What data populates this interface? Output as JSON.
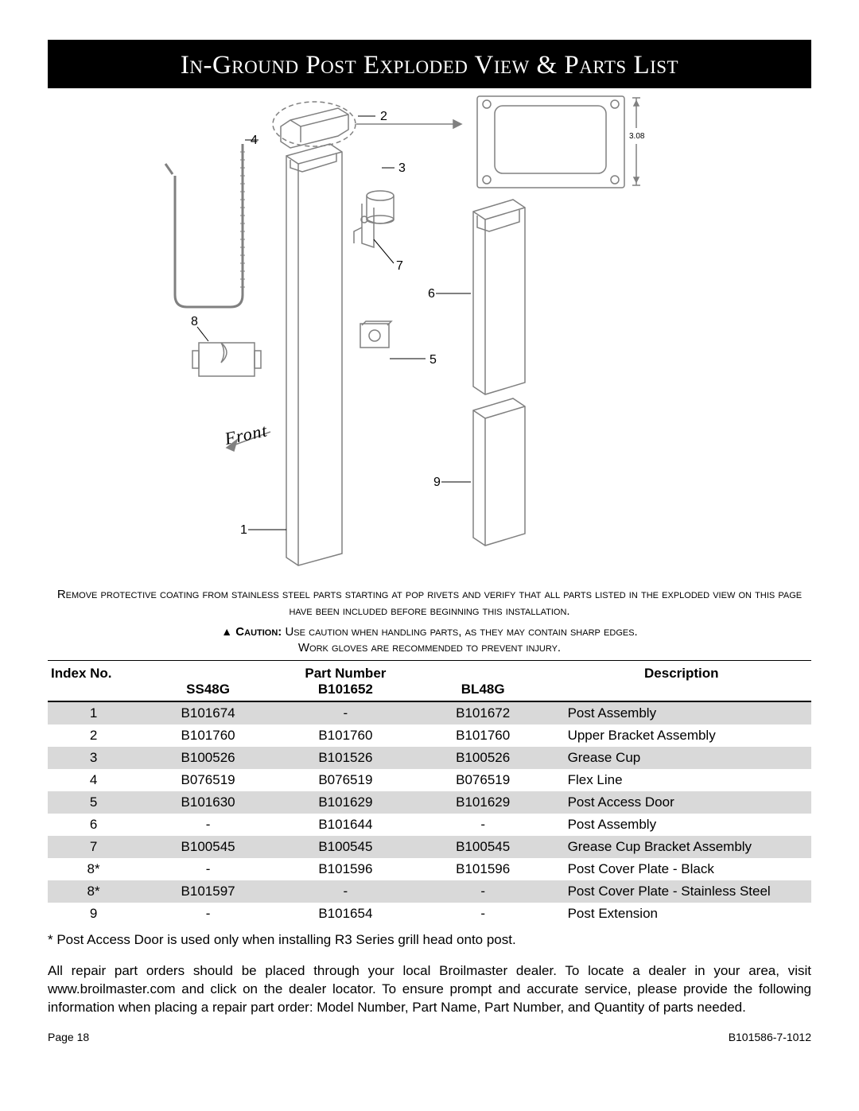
{
  "title": "In-Ground Post Exploded View & Parts List",
  "diagram": {
    "callouts": {
      "c1": "1",
      "c2": "2",
      "c3": "3",
      "c4": "4",
      "c5": "5",
      "c6": "6",
      "c7": "7",
      "c8": "8",
      "c9": "9"
    },
    "front_label": "Front",
    "dimension": "3.08",
    "colors": {
      "stroke": "#808080",
      "text": "#000000",
      "bg": "#ffffff"
    }
  },
  "note_text": "Remove protective coating from stainless steel parts starting at pop rivets and verify that all parts listed in the exploded view on this page have been included before beginning this installation.",
  "caution_prefix": "Caution:",
  "caution_text": " Use caution when handling parts, as they may contain sharp edges.",
  "caution_text2": "Work gloves are recommended to prevent injury.",
  "table": {
    "header_index": "Index No.",
    "header_part": "Part Number",
    "header_desc": "Description",
    "sub_ss48g": "SS48G",
    "sub_b101652": "B101652",
    "sub_bl48g": "BL48G",
    "col_widths": {
      "index": "12%",
      "c1": "18%",
      "c2": "18%",
      "c3": "18%",
      "desc": "34%"
    },
    "rows": [
      {
        "idx": "1",
        "a": "B101674",
        "b": "-",
        "c": "B101672",
        "d": "Post Assembly",
        "shade": true
      },
      {
        "idx": "2",
        "a": "B101760",
        "b": "B101760",
        "c": "B101760",
        "d": "Upper Bracket Assembly",
        "shade": false
      },
      {
        "idx": "3",
        "a": "B100526",
        "b": "B101526",
        "c": "B100526",
        "d": "Grease Cup",
        "shade": true
      },
      {
        "idx": "4",
        "a": "B076519",
        "b": "B076519",
        "c": "B076519",
        "d": "Flex Line",
        "shade": false
      },
      {
        "idx": "5",
        "a": "B101630",
        "b": "B101629",
        "c": "B101629",
        "d": "Post Access Door",
        "shade": true
      },
      {
        "idx": "6",
        "a": "-",
        "b": "B101644",
        "c": "-",
        "d": "Post Assembly",
        "shade": false
      },
      {
        "idx": "7",
        "a": "B100545",
        "b": "B100545",
        "c": "B100545",
        "d": "Grease Cup Bracket Assembly",
        "shade": true
      },
      {
        "idx": "8*",
        "a": "-",
        "b": "B101596",
        "c": "B101596",
        "d": "Post Cover Plate - Black",
        "shade": false
      },
      {
        "idx": "8*",
        "a": "B101597",
        "b": "-",
        "c": "-",
        "d": "Post Cover Plate - Stainless Steel",
        "shade": true
      },
      {
        "idx": "9",
        "a": "-",
        "b": "B101654",
        "c": "-",
        "d": "Post Extension",
        "shade": false
      }
    ]
  },
  "footnote1": "* Post Access Door is used only when installing R3 Series grill head onto post.",
  "footnote2": "All repair part orders should be placed through your local Broilmaster dealer. To locate a dealer in your area, visit www.broilmaster.com and click on the dealer locator. To ensure prompt and accurate service, please provide the following information when placing a repair part order: Model Number, Part Name, Part Number, and Quantity of parts needed.",
  "page_number": "Page 18",
  "doc_number": "B101586-7-1012"
}
